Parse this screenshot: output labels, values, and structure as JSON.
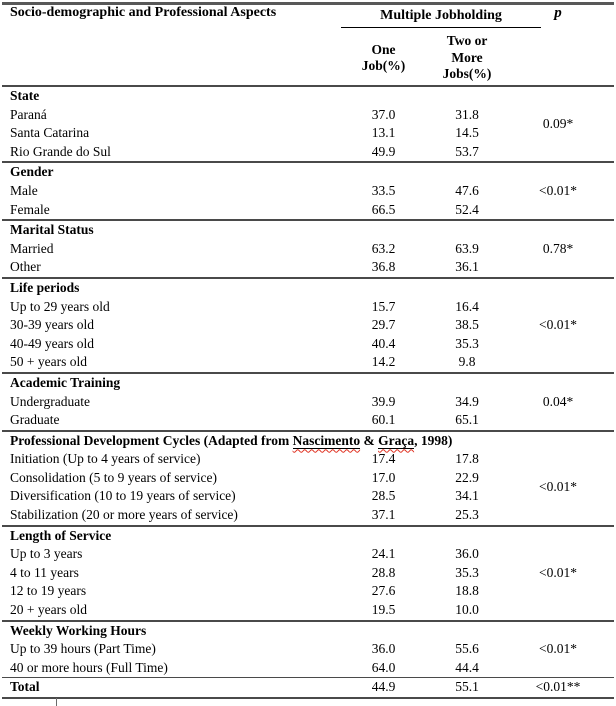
{
  "header": {
    "spanner": "Multiple Jobholding",
    "aspect": "Socio-demographic and Professional Aspects",
    "one_job_line1": "One",
    "one_job_line2": "Job(%)",
    "two_more_line1": "Two or",
    "two_more_line2": "More",
    "two_more_line3": "Jobs(%)",
    "p": "p"
  },
  "sections": [
    {
      "title": "State",
      "p": "0.09*",
      "rows": [
        {
          "label": "Paraná",
          "one": "37.0",
          "two": "31.8"
        },
        {
          "label": "Santa Catarina",
          "one": "13.1",
          "two": "14.5"
        },
        {
          "label": "Rio Grande do Sul",
          "one": "49.9",
          "two": "53.7"
        }
      ]
    },
    {
      "title": "Gender",
      "p": "<0.01*",
      "rows": [
        {
          "label": "Male",
          "one": "33.5",
          "two": "47.6"
        },
        {
          "label": "Female",
          "one": "66.5",
          "two": "52.4"
        }
      ]
    },
    {
      "title": "Marital Status",
      "p": "0.78*",
      "rows": [
        {
          "label": "Married",
          "one": "63.2",
          "two": "63.9"
        },
        {
          "label": "Other",
          "one": "36.8",
          "two": "36.1"
        }
      ]
    },
    {
      "title": "Life periods",
      "p": "<0.01*",
      "rows": [
        {
          "label": "Up to 29 years old",
          "one": "15.7",
          "two": "16.4"
        },
        {
          "label": "30-39 years old",
          "one": "29.7",
          "two": "38.5"
        },
        {
          "label": "40-49 years old",
          "one": "40.4",
          "two": "35.3"
        },
        {
          "label": "50 + years old",
          "one": "14.2",
          "two": "9.8"
        }
      ]
    },
    {
      "title": "Academic Training",
      "p": "0.04*",
      "rows": [
        {
          "label": "Undergraduate",
          "one": "39.9",
          "two": "34.9"
        },
        {
          "label": "Graduate",
          "one": "60.1",
          "two": "65.1"
        }
      ]
    },
    {
      "title": "Professional Development Cycles (Adapted from Nascimento & Graça, 1998)",
      "title_parts": {
        "prefix": "Professional Development Cycles (Adapted from ",
        "name1": "Nascimento",
        "sep": " & ",
        "name2": "Graça",
        "suffix": ", 1998)"
      },
      "p": "<0.01*",
      "rows": [
        {
          "label": "Initiation (Up to 4 years of service)",
          "one": "17.4",
          "two": "17.8"
        },
        {
          "label": "Consolidation (5 to 9 years of service)",
          "one": "17.0",
          "two": "22.9"
        },
        {
          "label": "Diversification (10 to 19 years of service)",
          "one": "28.5",
          "two": "34.1"
        },
        {
          "label": "Stabilization (20 or more years of service)",
          "one": "37.1",
          "two": "25.3"
        }
      ]
    },
    {
      "title": "Length of Service",
      "p": "<0.01*",
      "rows": [
        {
          "label": "Up to 3 years",
          "one": "24.1",
          "two": "36.0"
        },
        {
          "label": "4 to 11 years",
          "one": "28.8",
          "two": "35.3"
        },
        {
          "label": "12 to 19 years",
          "one": "27.6",
          "two": "18.8"
        },
        {
          "label": "20 + years old",
          "one": "19.5",
          "two": "10.0"
        }
      ]
    },
    {
      "title": "Weekly Working Hours",
      "p": "<0.01*",
      "rows": [
        {
          "label": "Up to 39 hours (Part Time)",
          "one": "36.0",
          "two": "55.6"
        },
        {
          "label": "40 or more hours (Full Time)",
          "one": "64.0",
          "two": "44.4"
        }
      ]
    }
  ],
  "total": {
    "label": "Total",
    "one": "44.9",
    "two": "55.1",
    "p": "<0.01**"
  },
  "colors": {
    "rule": "#4a4a4a",
    "text": "#000000",
    "squiggle": "#e03020"
  }
}
